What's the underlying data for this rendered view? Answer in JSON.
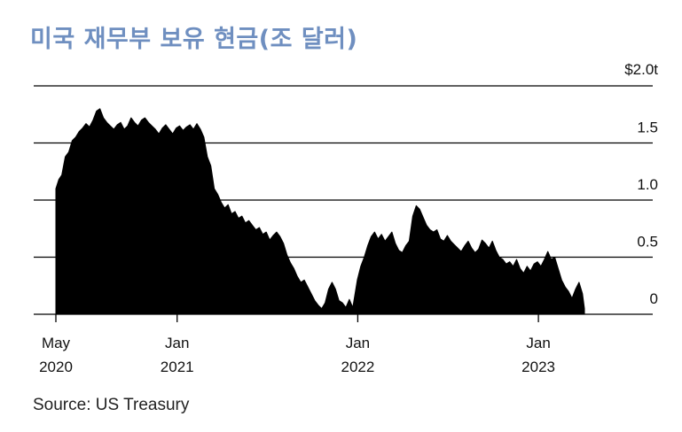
{
  "title": "미국 재무부 보유 현금(조 달러)",
  "source": "Source: US Treasury",
  "colors": {
    "title": "#6f8fc0",
    "area": "#000000",
    "gridline": "#000000",
    "text": "#111111"
  },
  "chart_data": {
    "type": "area",
    "title": "미국 재무부 보유 현금(조 달러)",
    "xlabel": "",
    "ylabel": "",
    "ylim": [
      0,
      2.0
    ],
    "y_ticks": [
      {
        "value": 2.0,
        "label": "$2.0t"
      },
      {
        "value": 1.5,
        "label": "1.5"
      },
      {
        "value": 1.0,
        "label": "1.0"
      },
      {
        "value": 0.5,
        "label": "0.5"
      },
      {
        "value": 0,
        "label": "0"
      }
    ],
    "x_ticks": [
      {
        "date": "2020-05-01",
        "label": [
          "May",
          "2020"
        ]
      },
      {
        "date": "2021-01-01",
        "label": [
          "Jan",
          "2021"
        ]
      },
      {
        "date": "2022-01-01",
        "label": [
          "Jan",
          "2022"
        ]
      },
      {
        "date": "2023-01-01",
        "label": [
          "Jan",
          "2023"
        ]
      }
    ],
    "x_range": [
      "2020-05-01",
      "2023-04-04"
    ],
    "grid": true,
    "legend": "none",
    "series": [
      {
        "values": [
          [
            "2020-05-01",
            1.1
          ],
          [
            "2020-05-07",
            1.18
          ],
          [
            "2020-05-13",
            1.22
          ],
          [
            "2020-05-20",
            1.38
          ],
          [
            "2020-05-27",
            1.42
          ],
          [
            "2020-06-03",
            1.52
          ],
          [
            "2020-06-10",
            1.55
          ],
          [
            "2020-06-17",
            1.6
          ],
          [
            "2020-06-24",
            1.63
          ],
          [
            "2020-07-01",
            1.67
          ],
          [
            "2020-07-08",
            1.64
          ],
          [
            "2020-07-15",
            1.7
          ],
          [
            "2020-07-22",
            1.78
          ],
          [
            "2020-07-29",
            1.8
          ],
          [
            "2020-08-05",
            1.72
          ],
          [
            "2020-08-12",
            1.68
          ],
          [
            "2020-08-19",
            1.65
          ],
          [
            "2020-08-26",
            1.62
          ],
          [
            "2020-09-02",
            1.66
          ],
          [
            "2020-09-09",
            1.68
          ],
          [
            "2020-09-16",
            1.62
          ],
          [
            "2020-09-23",
            1.65
          ],
          [
            "2020-09-30",
            1.72
          ],
          [
            "2020-10-07",
            1.68
          ],
          [
            "2020-10-14",
            1.65
          ],
          [
            "2020-10-21",
            1.7
          ],
          [
            "2020-10-28",
            1.72
          ],
          [
            "2020-11-04",
            1.68
          ],
          [
            "2020-11-11",
            1.65
          ],
          [
            "2020-11-18",
            1.62
          ],
          [
            "2020-11-25",
            1.58
          ],
          [
            "2020-12-02",
            1.63
          ],
          [
            "2020-12-09",
            1.66
          ],
          [
            "2020-12-16",
            1.62
          ],
          [
            "2020-12-23",
            1.58
          ],
          [
            "2020-12-30",
            1.63
          ],
          [
            "2021-01-06",
            1.65
          ],
          [
            "2021-01-13",
            1.61
          ],
          [
            "2021-01-20",
            1.64
          ],
          [
            "2021-01-27",
            1.66
          ],
          [
            "2021-02-03",
            1.62
          ],
          [
            "2021-02-10",
            1.67
          ],
          [
            "2021-02-17",
            1.62
          ],
          [
            "2021-02-24",
            1.55
          ],
          [
            "2021-03-03",
            1.38
          ],
          [
            "2021-03-10",
            1.3
          ],
          [
            "2021-03-17",
            1.1
          ],
          [
            "2021-03-24",
            1.05
          ],
          [
            "2021-03-31",
            0.98
          ],
          [
            "2021-04-07",
            0.93
          ],
          [
            "2021-04-14",
            0.96
          ],
          [
            "2021-04-21",
            0.88
          ],
          [
            "2021-04-28",
            0.9
          ],
          [
            "2021-05-05",
            0.84
          ],
          [
            "2021-05-12",
            0.86
          ],
          [
            "2021-05-19",
            0.8
          ],
          [
            "2021-05-26",
            0.82
          ],
          [
            "2021-06-02",
            0.78
          ],
          [
            "2021-06-09",
            0.74
          ],
          [
            "2021-06-16",
            0.76
          ],
          [
            "2021-06-23",
            0.7
          ],
          [
            "2021-06-30",
            0.72
          ],
          [
            "2021-07-07",
            0.65
          ],
          [
            "2021-07-14",
            0.69
          ],
          [
            "2021-07-21",
            0.72
          ],
          [
            "2021-07-28",
            0.68
          ],
          [
            "2021-08-04",
            0.62
          ],
          [
            "2021-08-11",
            0.52
          ],
          [
            "2021-08-18",
            0.45
          ],
          [
            "2021-08-25",
            0.4
          ],
          [
            "2021-09-01",
            0.33
          ],
          [
            "2021-09-08",
            0.28
          ],
          [
            "2021-09-15",
            0.3
          ],
          [
            "2021-09-22",
            0.24
          ],
          [
            "2021-09-29",
            0.18
          ],
          [
            "2021-10-06",
            0.12
          ],
          [
            "2021-10-13",
            0.08
          ],
          [
            "2021-10-20",
            0.05
          ],
          [
            "2021-10-27",
            0.1
          ],
          [
            "2021-11-03",
            0.22
          ],
          [
            "2021-11-10",
            0.28
          ],
          [
            "2021-11-17",
            0.22
          ],
          [
            "2021-11-24",
            0.12
          ],
          [
            "2021-12-01",
            0.1
          ],
          [
            "2021-12-08",
            0.06
          ],
          [
            "2021-12-15",
            0.13
          ],
          [
            "2021-12-22",
            0.06
          ],
          [
            "2021-12-31",
            0.3
          ],
          [
            "2022-01-07",
            0.42
          ],
          [
            "2022-01-14",
            0.5
          ],
          [
            "2022-01-21",
            0.6
          ],
          [
            "2022-01-28",
            0.68
          ],
          [
            "2022-02-04",
            0.72
          ],
          [
            "2022-02-11",
            0.66
          ],
          [
            "2022-02-18",
            0.7
          ],
          [
            "2022-02-25",
            0.64
          ],
          [
            "2022-03-04",
            0.68
          ],
          [
            "2022-03-11",
            0.72
          ],
          [
            "2022-03-18",
            0.62
          ],
          [
            "2022-03-25",
            0.56
          ],
          [
            "2022-04-01",
            0.54
          ],
          [
            "2022-04-08",
            0.6
          ],
          [
            "2022-04-15",
            0.64
          ],
          [
            "2022-04-22",
            0.86
          ],
          [
            "2022-04-29",
            0.95
          ],
          [
            "2022-05-06",
            0.92
          ],
          [
            "2022-05-13",
            0.85
          ],
          [
            "2022-05-20",
            0.78
          ],
          [
            "2022-05-27",
            0.74
          ],
          [
            "2022-06-03",
            0.72
          ],
          [
            "2022-06-10",
            0.74
          ],
          [
            "2022-06-17",
            0.66
          ],
          [
            "2022-06-24",
            0.64
          ],
          [
            "2022-07-01",
            0.69
          ],
          [
            "2022-07-08",
            0.64
          ],
          [
            "2022-07-15",
            0.61
          ],
          [
            "2022-07-22",
            0.58
          ],
          [
            "2022-07-29",
            0.55
          ],
          [
            "2022-08-05",
            0.6
          ],
          [
            "2022-08-12",
            0.64
          ],
          [
            "2022-08-19",
            0.58
          ],
          [
            "2022-08-26",
            0.54
          ],
          [
            "2022-09-02",
            0.57
          ],
          [
            "2022-09-09",
            0.65
          ],
          [
            "2022-09-16",
            0.62
          ],
          [
            "2022-09-23",
            0.58
          ],
          [
            "2022-09-30",
            0.64
          ],
          [
            "2022-10-07",
            0.56
          ],
          [
            "2022-10-14",
            0.5
          ],
          [
            "2022-10-21",
            0.48
          ],
          [
            "2022-10-28",
            0.44
          ],
          [
            "2022-11-04",
            0.46
          ],
          [
            "2022-11-11",
            0.42
          ],
          [
            "2022-11-18",
            0.48
          ],
          [
            "2022-11-25",
            0.4
          ],
          [
            "2022-12-02",
            0.36
          ],
          [
            "2022-12-09",
            0.42
          ],
          [
            "2022-12-16",
            0.38
          ],
          [
            "2022-12-23",
            0.44
          ],
          [
            "2022-12-30",
            0.46
          ],
          [
            "2023-01-06",
            0.42
          ],
          [
            "2023-01-13",
            0.48
          ],
          [
            "2023-01-20",
            0.55
          ],
          [
            "2023-01-27",
            0.48
          ],
          [
            "2023-02-03",
            0.5
          ],
          [
            "2023-02-10",
            0.4
          ],
          [
            "2023-02-17",
            0.3
          ],
          [
            "2023-02-24",
            0.24
          ],
          [
            "2023-03-03",
            0.2
          ],
          [
            "2023-03-10",
            0.14
          ],
          [
            "2023-03-17",
            0.22
          ],
          [
            "2023-03-24",
            0.28
          ],
          [
            "2023-03-31",
            0.18
          ],
          [
            "2023-04-04",
            0.05
          ]
        ]
      }
    ]
  }
}
